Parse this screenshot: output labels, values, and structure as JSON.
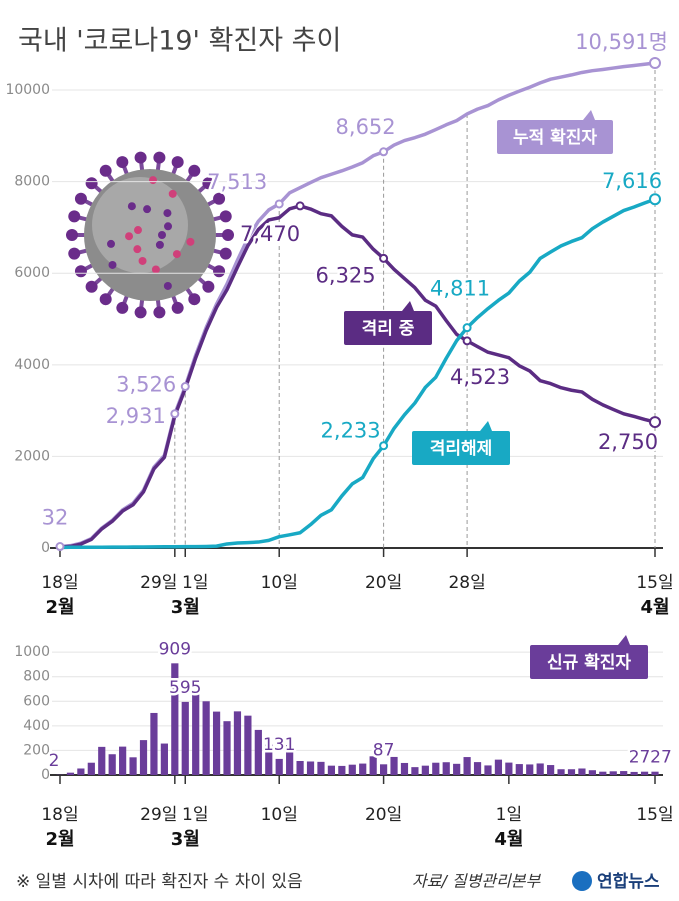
{
  "chart_data": [
    {
      "type": "line",
      "title": "국내 '코로나19' 확진자 추이",
      "categories": [
        "18일",
        null,
        null,
        null,
        null,
        null,
        null,
        null,
        null,
        null,
        null,
        "29일",
        "1일",
        null,
        null,
        null,
        null,
        null,
        null,
        null,
        null,
        "10일",
        null,
        null,
        null,
        null,
        null,
        null,
        null,
        null,
        null,
        "20일",
        null,
        null,
        null,
        null,
        null,
        null,
        null,
        "28일",
        null,
        null,
        null,
        null,
        null,
        null,
        null,
        null,
        null,
        null,
        null,
        null,
        null,
        null,
        null,
        null,
        null,
        "15일"
      ],
      "month_labels": [
        "2월",
        "3월",
        "4월"
      ],
      "ylim": [
        0,
        10700
      ],
      "yticks": [
        0,
        2000,
        4000,
        6000,
        8000,
        10000
      ],
      "grid": true,
      "series": [
        {
          "name": "누적 확진자",
          "color": "#a893d3",
          "values": [
            32,
            51,
            104,
            204,
            433,
            602,
            833,
            977,
            1261,
            1766,
            2022,
            2931,
            3526,
            4212,
            4812,
            5328,
            5766,
            6284,
            6767,
            7134,
            7382,
            7513,
            7755,
            7869,
            7979,
            8086,
            8162,
            8236,
            8320,
            8413,
            8565,
            8652,
            8799,
            8897,
            8961,
            9037,
            9137,
            9241,
            9332,
            9478,
            9583,
            9661,
            9786,
            9887,
            9976,
            10062,
            10156,
            10237,
            10284,
            10331,
            10384,
            10423,
            10450,
            10480,
            10512,
            10537,
            10564,
            10591
          ],
          "value_labels": [
            "32",
            null,
            null,
            null,
            null,
            null,
            null,
            null,
            null,
            null,
            null,
            "2,931",
            "3,526",
            null,
            null,
            null,
            null,
            null,
            null,
            null,
            null,
            "7,513",
            null,
            null,
            null,
            null,
            null,
            null,
            null,
            null,
            null,
            "8,652",
            null,
            null,
            null,
            null,
            null,
            null,
            null,
            null,
            null,
            null,
            null,
            null,
            null,
            null,
            null,
            null,
            null,
            null,
            null,
            null,
            null,
            null,
            null,
            null,
            null,
            "10,591명"
          ]
        },
        {
          "name": "격리 중",
          "color": "#5b2c83",
          "values": [
            20,
            35,
            87,
            187,
            416,
            582,
            808,
            945,
            1227,
            1729,
            1980,
            2887,
            3479,
            4152,
            4749,
            5255,
            5643,
            6134,
            6603,
            6954,
            7163,
            7212,
            7407,
            7470,
            7402,
            7300,
            7253,
            7024,
            6838,
            6789,
            6527,
            6325,
            6085,
            5884,
            5684,
            5410,
            5281,
            4966,
            4665,
            4523,
            4398,
            4275,
            4216,
            4155,
            3979,
            3867,
            3654,
            3590,
            3500,
            3445,
            3408,
            3246,
            3125,
            3026,
            2930,
            2873,
            2808,
            2750
          ],
          "value_labels": [
            null,
            null,
            null,
            null,
            null,
            null,
            null,
            null,
            null,
            null,
            null,
            null,
            null,
            null,
            null,
            null,
            null,
            null,
            null,
            null,
            null,
            null,
            null,
            "7,470",
            null,
            null,
            null,
            null,
            null,
            null,
            null,
            "6,325",
            null,
            null,
            null,
            null,
            null,
            null,
            null,
            "4,523",
            null,
            null,
            null,
            null,
            null,
            null,
            null,
            null,
            null,
            null,
            null,
            null,
            null,
            null,
            null,
            null,
            null,
            "2,750"
          ]
        },
        {
          "name": "격리해제",
          "color": "#18a9c4",
          "values": [
            12,
            16,
            16,
            16,
            16,
            18,
            18,
            22,
            22,
            24,
            27,
            27,
            30,
            30,
            34,
            41,
            88,
            108,
            118,
            130,
            166,
            247,
            288,
            333,
            510,
            714,
            834,
            1137,
            1401,
            1540,
            1947,
            2233,
            2612,
            2909,
            3166,
            3507,
            3730,
            4144,
            4528,
            4811,
            5033,
            5228,
            5408,
            5567,
            5828,
            6021,
            6325,
            6463,
            6598,
            6694,
            6776,
            6973,
            7117,
            7243,
            7368,
            7447,
            7534,
            7616
          ],
          "value_labels": [
            null,
            null,
            null,
            null,
            null,
            null,
            null,
            null,
            null,
            null,
            null,
            null,
            null,
            null,
            null,
            null,
            null,
            null,
            null,
            null,
            null,
            null,
            null,
            null,
            null,
            null,
            null,
            null,
            null,
            null,
            null,
            "2,233",
            null,
            null,
            null,
            null,
            null,
            null,
            null,
            "4,811",
            null,
            null,
            null,
            null,
            null,
            null,
            null,
            null,
            null,
            null,
            null,
            null,
            null,
            null,
            null,
            null,
            null,
            "7,616"
          ]
        }
      ]
    },
    {
      "type": "bar",
      "categories": [
        "18일",
        null,
        null,
        null,
        null,
        null,
        null,
        null,
        null,
        null,
        null,
        "29일",
        "1일",
        null,
        null,
        null,
        null,
        null,
        null,
        null,
        null,
        "10일",
        null,
        null,
        null,
        null,
        null,
        null,
        null,
        null,
        null,
        "20일",
        null,
        null,
        null,
        null,
        null,
        null,
        null,
        null,
        null,
        null,
        null,
        "1일",
        null,
        null,
        null,
        null,
        null,
        null,
        null,
        null,
        null,
        null,
        null,
        null,
        null,
        "15일"
      ],
      "month_labels": [
        "2월",
        "3월",
        "4월"
      ],
      "ylim": [
        0,
        1050
      ],
      "yticks": [
        0,
        200,
        400,
        600,
        800,
        1000
      ],
      "grid": true,
      "series": [
        {
          "name": "신규 확진자",
          "color": "#6a3d9a",
          "values": [
            2,
            19,
            53,
            100,
            229,
            169,
            231,
            144,
            284,
            505,
            256,
            909,
            595,
            686,
            600,
            516,
            438,
            518,
            483,
            367,
            248,
            131,
            242,
            114,
            110,
            107,
            76,
            74,
            84,
            93,
            152,
            87,
            147,
            98,
            64,
            76,
            100,
            104,
            91,
            146,
            105,
            78,
            125,
            101,
            89,
            86,
            94,
            81,
            47,
            47,
            53,
            39,
            27,
            30,
            32,
            25,
            27,
            27
          ],
          "value_labels": [
            "2",
            null,
            null,
            null,
            null,
            null,
            null,
            null,
            null,
            null,
            null,
            "909",
            "595",
            null,
            null,
            null,
            null,
            null,
            null,
            null,
            null,
            "131",
            null,
            null,
            null,
            null,
            null,
            null,
            null,
            null,
            null,
            "87",
            null,
            null,
            null,
            null,
            null,
            null,
            null,
            null,
            null,
            null,
            null,
            null,
            null,
            null,
            null,
            null,
            null,
            null,
            null,
            null,
            null,
            null,
            null,
            null,
            "27",
            "27"
          ]
        }
      ]
    }
  ],
  "note": "※ 일별 시차에 따라 확진자 수 차이 있음",
  "source": "자료/ 질병관리본부",
  "logo": "연합뉴스"
}
